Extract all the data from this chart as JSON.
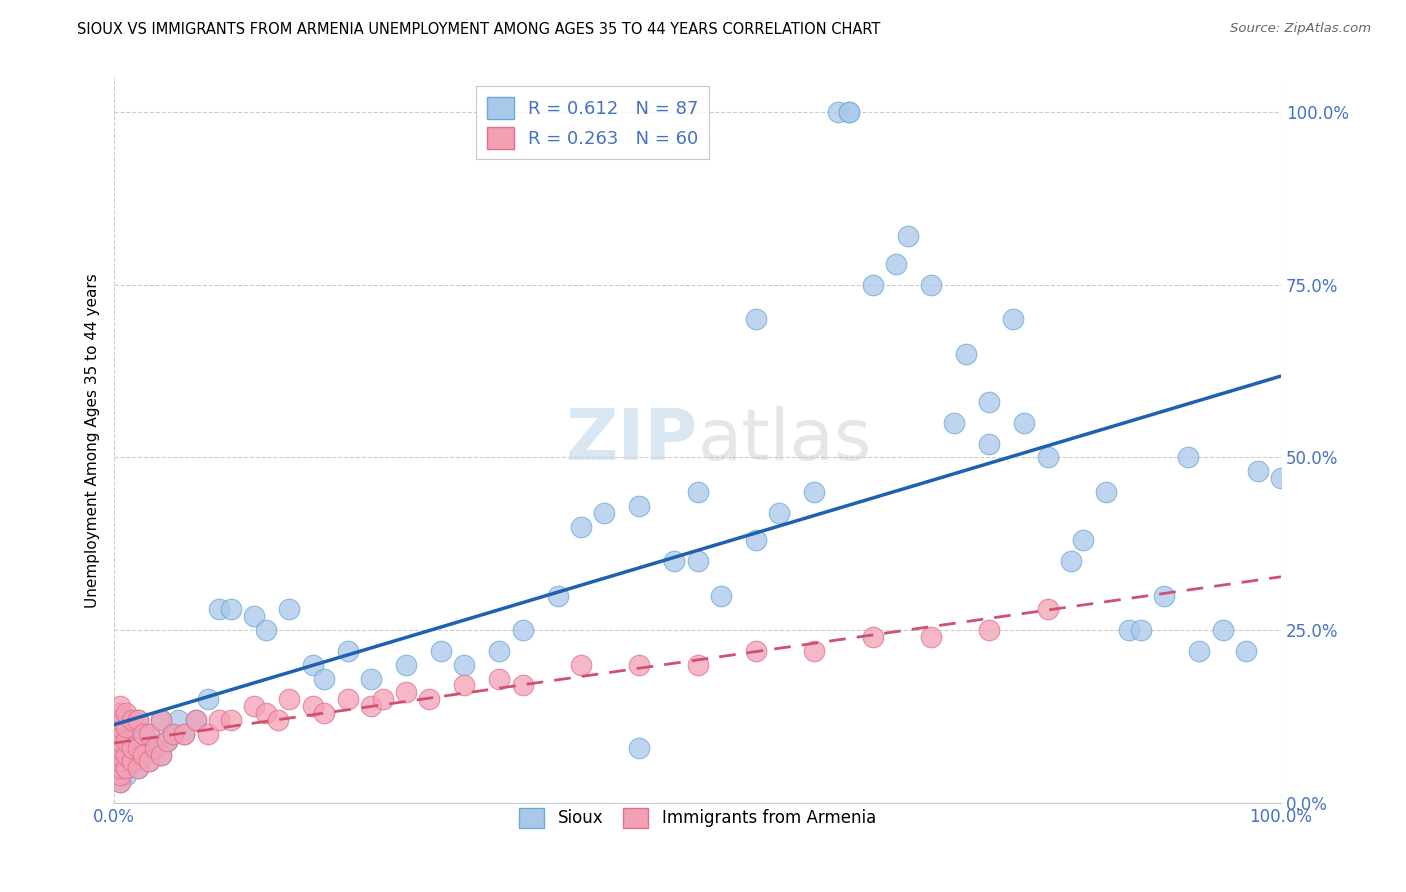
{
  "title": "SIOUX VS IMMIGRANTS FROM ARMENIA UNEMPLOYMENT AMONG AGES 35 TO 44 YEARS CORRELATION CHART",
  "source": "Source: ZipAtlas.com",
  "ylabel": "Unemployment Among Ages 35 to 44 years",
  "ytick_labels": [
    "0.0%",
    "25.0%",
    "50.0%",
    "75.0%",
    "100.0%"
  ],
  "ytick_vals": [
    0.0,
    0.25,
    0.5,
    0.75,
    1.0
  ],
  "sioux_R": 0.612,
  "sioux_N": 87,
  "armenia_R": 0.263,
  "armenia_N": 60,
  "sioux_color": "#aac8ea",
  "sioux_edge_color": "#6aaad4",
  "sioux_line_color": "#2060b0",
  "armenia_color": "#f4a0b4",
  "armenia_edge_color": "#e07090",
  "armenia_line_color": "#d05070",
  "watermark_color": "#d8e8f4",
  "background_color": "#ffffff",
  "tick_color": "#4472c4",
  "grid_color": "#cccccc",
  "sioux_x": [
    0.005,
    0.005,
    0.005,
    0.005,
    0.005,
    0.005,
    0.005,
    0.005,
    0.005,
    0.01,
    0.01,
    0.01,
    0.01,
    0.01,
    0.01,
    0.015,
    0.015,
    0.015,
    0.02,
    0.02,
    0.02,
    0.02,
    0.025,
    0.03,
    0.03,
    0.035,
    0.04,
    0.04,
    0.045,
    0.05,
    0.055,
    0.06,
    0.07,
    0.08,
    0.09,
    0.1,
    0.12,
    0.13,
    0.15,
    0.17,
    0.18,
    0.2,
    0.22,
    0.25,
    0.28,
    0.3,
    0.33,
    0.35,
    0.38,
    0.4,
    0.42,
    0.45,
    0.48,
    0.5,
    0.52,
    0.55,
    0.57,
    0.6,
    0.62,
    0.63,
    0.63,
    0.65,
    0.67,
    0.68,
    0.7,
    0.72,
    0.73,
    0.75,
    0.77,
    0.78,
    0.8,
    0.82,
    0.83,
    0.85,
    0.87,
    0.88,
    0.9,
    0.92,
    0.93,
    0.95,
    0.97,
    0.98,
    1.0,
    0.75,
    0.55,
    0.5,
    0.45
  ],
  "sioux_y": [
    0.03,
    0.04,
    0.05,
    0.06,
    0.07,
    0.08,
    0.09,
    0.1,
    0.12,
    0.04,
    0.05,
    0.07,
    0.09,
    0.1,
    0.12,
    0.06,
    0.08,
    0.1,
    0.05,
    0.07,
    0.09,
    0.12,
    0.08,
    0.06,
    0.1,
    0.08,
    0.07,
    0.12,
    0.09,
    0.1,
    0.12,
    0.1,
    0.12,
    0.15,
    0.28,
    0.28,
    0.27,
    0.25,
    0.28,
    0.2,
    0.18,
    0.22,
    0.18,
    0.2,
    0.22,
    0.2,
    0.22,
    0.25,
    0.3,
    0.4,
    0.42,
    0.43,
    0.35,
    0.45,
    0.3,
    0.38,
    0.42,
    0.45,
    1.0,
    1.0,
    1.0,
    0.75,
    0.78,
    0.82,
    0.75,
    0.55,
    0.65,
    0.52,
    0.7,
    0.55,
    0.5,
    0.35,
    0.38,
    0.45,
    0.25,
    0.25,
    0.3,
    0.5,
    0.22,
    0.25,
    0.22,
    0.48,
    0.47,
    0.58,
    0.7,
    0.35,
    0.08
  ],
  "armenia_x": [
    0.005,
    0.005,
    0.005,
    0.005,
    0.005,
    0.005,
    0.005,
    0.005,
    0.005,
    0.005,
    0.005,
    0.005,
    0.01,
    0.01,
    0.01,
    0.01,
    0.01,
    0.015,
    0.015,
    0.015,
    0.02,
    0.02,
    0.02,
    0.025,
    0.025,
    0.03,
    0.03,
    0.035,
    0.04,
    0.04,
    0.045,
    0.05,
    0.06,
    0.07,
    0.08,
    0.09,
    0.1,
    0.12,
    0.13,
    0.14,
    0.15,
    0.17,
    0.18,
    0.2,
    0.22,
    0.23,
    0.25,
    0.27,
    0.3,
    0.33,
    0.35,
    0.4,
    0.45,
    0.5,
    0.55,
    0.6,
    0.65,
    0.7,
    0.75,
    0.8
  ],
  "armenia_y": [
    0.03,
    0.04,
    0.05,
    0.06,
    0.07,
    0.08,
    0.09,
    0.1,
    0.11,
    0.12,
    0.13,
    0.14,
    0.05,
    0.07,
    0.09,
    0.11,
    0.13,
    0.06,
    0.08,
    0.12,
    0.05,
    0.08,
    0.12,
    0.07,
    0.1,
    0.06,
    0.1,
    0.08,
    0.07,
    0.12,
    0.09,
    0.1,
    0.1,
    0.12,
    0.1,
    0.12,
    0.12,
    0.14,
    0.13,
    0.12,
    0.15,
    0.14,
    0.13,
    0.15,
    0.14,
    0.15,
    0.16,
    0.15,
    0.17,
    0.18,
    0.17,
    0.2,
    0.2,
    0.2,
    0.22,
    0.22,
    0.24,
    0.24,
    0.25,
    0.28
  ]
}
